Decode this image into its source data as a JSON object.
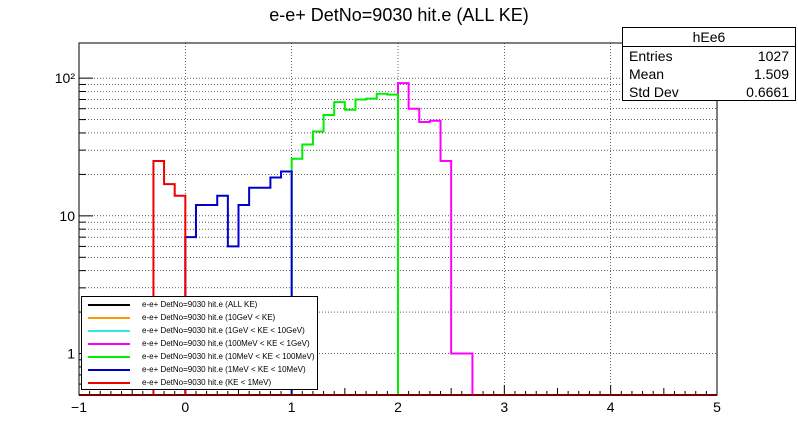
{
  "chart_data": {
    "type": "histogram-step",
    "title": "e-e+ DetNo=9030 hit.e (ALL KE)",
    "x_axis": {
      "range": [
        -1,
        5
      ],
      "ticks": [
        "−1",
        "0",
        "1",
        "2",
        "3",
        "4",
        "5"
      ]
    },
    "y_axis": {
      "scale": "log",
      "range": [
        0.5,
        180
      ],
      "tick_labels": [
        "1",
        "10",
        "10²"
      ]
    },
    "grid": true,
    "bin_width": 0.1,
    "series": [
      {
        "name": "e-e+ DetNo=9030 hit.e (ALL KE)",
        "color": "#000000",
        "bins_x_low": [],
        "values": []
      },
      {
        "name": "e-e+ DetNo=9030 hit.e (10GeV < KE)",
        "color": "#ff9900",
        "bins_x_low": [],
        "values": []
      },
      {
        "name": "e-e+ DetNo=9030 hit.e (1GeV < KE < 10GeV)",
        "color": "#33e5e5",
        "bins_x_low": [],
        "values": []
      },
      {
        "name": "e-e+ DetNo=9030 hit.e (100MeV < KE < 1GeV)",
        "color": "#ff00ff",
        "bins_x_low": [
          2.0,
          2.1,
          2.2,
          2.3,
          2.4,
          2.5,
          2.6
        ],
        "values": [
          92,
          60,
          48,
          49,
          25,
          1,
          1
        ]
      },
      {
        "name": "e-e+ DetNo=9030 hit.e (10MeV < KE < 100MeV)",
        "color": "#00ee00",
        "bins_x_low": [
          1.0,
          1.1,
          1.2,
          1.3,
          1.4,
          1.5,
          1.6,
          1.7,
          1.8,
          1.9
        ],
        "values": [
          26,
          33,
          41,
          54,
          67,
          59,
          70,
          71,
          77,
          76
        ]
      },
      {
        "name": "e-e+ DetNo=9030 hit.e (1MeV < KE < 10MeV)",
        "color": "#0000cc",
        "bins_x_low": [
          0.0,
          0.1,
          0.2,
          0.3,
          0.4,
          0.5,
          0.6,
          0.7,
          0.8,
          0.9
        ],
        "values": [
          7,
          12,
          12,
          14,
          6,
          12,
          16,
          16,
          19,
          21
        ]
      },
      {
        "name": "e-e+ DetNo=9030 hit.e (KE < 1MeV)",
        "color": "#ee0000",
        "bins_x_low": [
          -0.3,
          -0.2,
          -0.1
        ],
        "values": [
          25,
          17,
          14
        ]
      }
    ],
    "stats": {
      "title": "hEe6",
      "rows": [
        {
          "label": "Entries",
          "value": "1027"
        },
        {
          "label": "Mean",
          "value": "1.509"
        },
        {
          "label": "Std Dev",
          "value": "0.6661"
        }
      ]
    }
  }
}
